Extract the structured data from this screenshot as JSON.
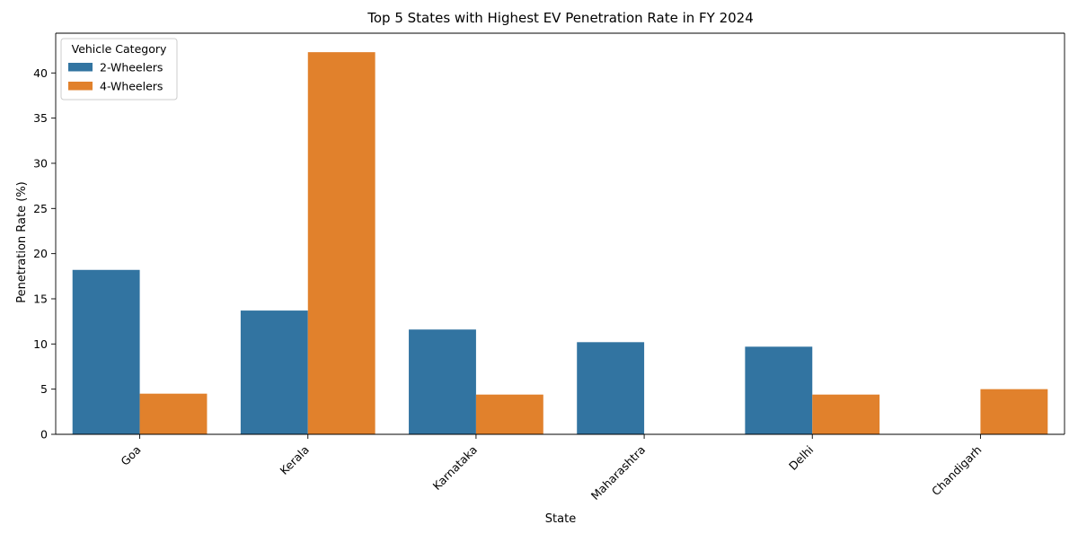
{
  "chart_data": {
    "type": "bar",
    "title": "Top 5 States with Highest EV Penetration Rate in FY 2024",
    "xlabel": "State",
    "ylabel": "Penetration Rate (%)",
    "categories": [
      "Goa",
      "Kerala",
      "Karnataka",
      "Maharashtra",
      "Delhi",
      "Chandigarh"
    ],
    "series": [
      {
        "name": "2-Wheelers",
        "color": "#3274a1",
        "values": [
          18.2,
          13.7,
          11.6,
          10.2,
          9.7,
          null
        ]
      },
      {
        "name": "4-Wheelers",
        "color": "#e1812c",
        "values": [
          4.5,
          42.3,
          4.4,
          null,
          4.4,
          5.0
        ]
      }
    ],
    "ylim": [
      0,
      44.4
    ],
    "yticks": [
      0,
      5,
      10,
      15,
      20,
      25,
      30,
      35,
      40
    ],
    "grid": false,
    "legend": {
      "title": "Vehicle Category",
      "placement": "top-left"
    },
    "x_tick_rotation_deg": 45
  }
}
